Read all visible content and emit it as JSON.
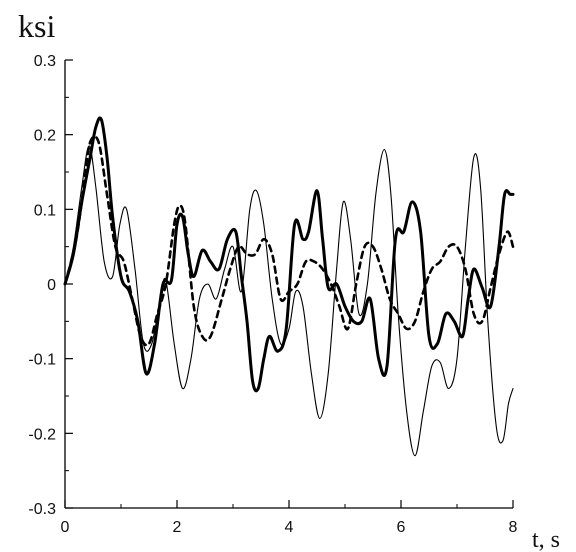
{
  "chart_data": {
    "type": "line",
    "ylabel": "ksi",
    "xlabel": "t, s",
    "xlim": [
      0,
      8
    ],
    "ylim": [
      -0.3,
      0.3
    ],
    "xticks": [
      0,
      2,
      4,
      6,
      8
    ],
    "xtick_labels": [
      "0",
      "2",
      "4",
      "6",
      "8"
    ],
    "yticks": [
      -0.3,
      -0.2,
      -0.1,
      0,
      0.1,
      0.2,
      0.3
    ],
    "ytick_labels": [
      "-0.3",
      "-0.2",
      "-0.1",
      "0",
      "0.1",
      "0.2",
      "0.3"
    ],
    "grid": false,
    "series": [
      {
        "style": "thin solid",
        "x": [
          0,
          0.15,
          0.3,
          0.43,
          0.55,
          0.7,
          0.85,
          0.98,
          1.1,
          1.25,
          1.4,
          1.55,
          1.7,
          1.8,
          1.95,
          2.1,
          2.25,
          2.4,
          2.55,
          2.7,
          2.85,
          3.0,
          3.15,
          3.3,
          3.42,
          3.55,
          3.7,
          3.85,
          4.0,
          4.12,
          4.25,
          4.4,
          4.55,
          4.7,
          4.85,
          4.97,
          5.1,
          5.25,
          5.4,
          5.55,
          5.7,
          5.82,
          5.95,
          6.1,
          6.25,
          6.4,
          6.55,
          6.7,
          6.85,
          7.0,
          7.15,
          7.3,
          7.42,
          7.55,
          7.7,
          7.82,
          7.92,
          8.0
        ],
        "y": [
          0.0,
          0.05,
          0.13,
          0.185,
          0.13,
          0.03,
          0.01,
          0.08,
          0.1,
          0.02,
          -0.08,
          -0.08,
          -0.02,
          0.005,
          -0.08,
          -0.14,
          -0.1,
          -0.02,
          0.0,
          -0.02,
          0.02,
          0.05,
          -0.01,
          0.1,
          0.125,
          0.08,
          -0.02,
          -0.08,
          -0.06,
          -0.01,
          -0.03,
          -0.12,
          -0.18,
          -0.12,
          0.02,
          0.11,
          0.06,
          -0.04,
          0.0,
          0.12,
          0.18,
          0.12,
          -0.04,
          -0.17,
          -0.23,
          -0.17,
          -0.11,
          -0.105,
          -0.14,
          -0.1,
          0.05,
          0.17,
          0.13,
          -0.05,
          -0.19,
          -0.21,
          -0.16,
          -0.14
        ]
      },
      {
        "style": "thick solid",
        "x": [
          0,
          0.15,
          0.3,
          0.45,
          0.55,
          0.65,
          0.75,
          0.85,
          1.0,
          1.15,
          1.3,
          1.45,
          1.6,
          1.75,
          1.9,
          2.0,
          2.1,
          2.2,
          2.3,
          2.45,
          2.6,
          2.75,
          2.9,
          3.05,
          3.15,
          3.25,
          3.35,
          3.45,
          3.55,
          3.65,
          3.8,
          3.95,
          4.1,
          4.25,
          4.35,
          4.5,
          4.6,
          4.7,
          4.85,
          5.0,
          5.15,
          5.3,
          5.45,
          5.6,
          5.75,
          5.9,
          6.05,
          6.2,
          6.35,
          6.5,
          6.65,
          6.8,
          6.95,
          7.1,
          7.2,
          7.3,
          7.45,
          7.6,
          7.75,
          7.85,
          7.95,
          8.0
        ],
        "y": [
          0.0,
          0.04,
          0.11,
          0.17,
          0.21,
          0.22,
          0.17,
          0.09,
          0.01,
          -0.01,
          -0.05,
          -0.12,
          -0.08,
          0.0,
          0.005,
          0.08,
          0.09,
          0.04,
          0.01,
          0.045,
          0.03,
          0.02,
          0.06,
          0.07,
          0.01,
          -0.05,
          -0.13,
          -0.14,
          -0.1,
          -0.07,
          -0.09,
          -0.06,
          0.08,
          0.06,
          0.07,
          0.125,
          0.06,
          -0.005,
          0.0,
          -0.03,
          -0.05,
          -0.05,
          -0.02,
          -0.1,
          -0.11,
          0.06,
          0.07,
          0.11,
          0.07,
          -0.07,
          -0.08,
          -0.04,
          -0.05,
          -0.07,
          -0.02,
          0.02,
          -0.005,
          -0.03,
          0.05,
          0.12,
          0.12,
          0.12
        ]
      },
      {
        "style": "dashed",
        "x": [
          0,
          0.2,
          0.35,
          0.45,
          0.6,
          0.75,
          0.9,
          1.05,
          1.2,
          1.35,
          1.5,
          1.65,
          1.8,
          1.95,
          2.05,
          2.15,
          2.3,
          2.45,
          2.6,
          2.8,
          2.95,
          3.1,
          3.25,
          3.4,
          3.55,
          3.7,
          3.85,
          4.0,
          4.15,
          4.3,
          4.45,
          4.6,
          4.75,
          4.9,
          5.05,
          5.2,
          5.35,
          5.5,
          5.65,
          5.8,
          5.95,
          6.1,
          6.25,
          6.4,
          6.55,
          6.7,
          6.85,
          7.0,
          7.15,
          7.3,
          7.45,
          7.6,
          7.75,
          7.9,
          8.0
        ],
        "y": [
          0.0,
          0.06,
          0.14,
          0.19,
          0.19,
          0.12,
          0.05,
          0.03,
          -0.02,
          -0.07,
          -0.08,
          -0.04,
          0.0,
          0.08,
          0.105,
          0.08,
          -0.03,
          -0.07,
          -0.07,
          -0.02,
          0.02,
          0.05,
          0.04,
          0.04,
          0.06,
          0.04,
          -0.02,
          -0.01,
          0.0,
          0.03,
          0.03,
          0.02,
          0.0,
          -0.03,
          -0.06,
          0.0,
          0.05,
          0.05,
          0.02,
          -0.02,
          -0.04,
          -0.06,
          -0.05,
          -0.01,
          0.02,
          0.03,
          0.05,
          0.05,
          0.02,
          -0.04,
          -0.05,
          -0.005,
          0.04,
          0.07,
          0.05
        ]
      }
    ]
  }
}
